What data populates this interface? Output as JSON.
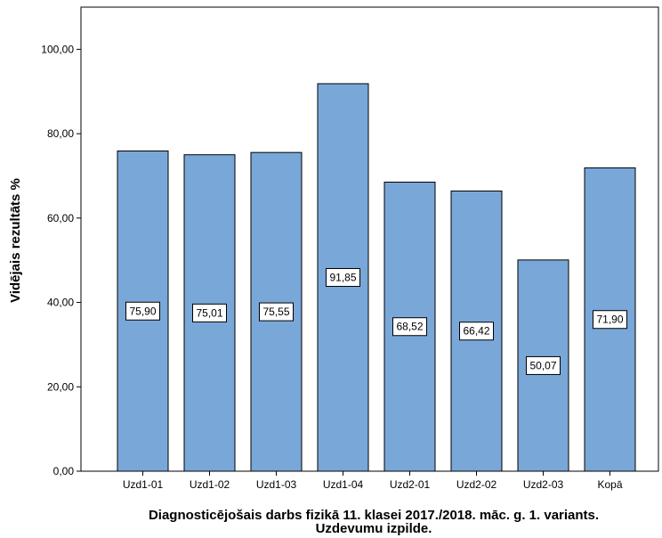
{
  "chart_data": {
    "type": "bar",
    "title": "",
    "ylabel": "Vidējais rezultāts %",
    "xlabel_lines": [
      "Diagnosticējošais darbs fizikā 11. klasei 2017./2018. māc. g. 1. variants.",
      "Uzdevumu izpilde."
    ],
    "categories": [
      "Uzd1-01",
      "Uzd1-02",
      "Uzd1-03",
      "Uzd1-04",
      "Uzd2-01",
      "Uzd2-02",
      "Uzd2-03",
      "Kopā"
    ],
    "values": [
      75.9,
      75.01,
      75.55,
      91.85,
      68.52,
      66.42,
      50.07,
      71.9
    ],
    "data_labels": [
      "75,90",
      "75,01",
      "75,55",
      "91,85",
      "68,52",
      "66,42",
      "50,07",
      "71,90"
    ],
    "ylim": [
      0,
      110
    ],
    "yticks": [
      0,
      20,
      40,
      60,
      80,
      100
    ],
    "ytick_labels": [
      "0,00",
      "20,00",
      "40,00",
      "60,00",
      "80,00",
      "100,00"
    ],
    "bar_color": "#79a7d8",
    "bar_edge_color": "#000000",
    "grid": false,
    "legend": false
  }
}
